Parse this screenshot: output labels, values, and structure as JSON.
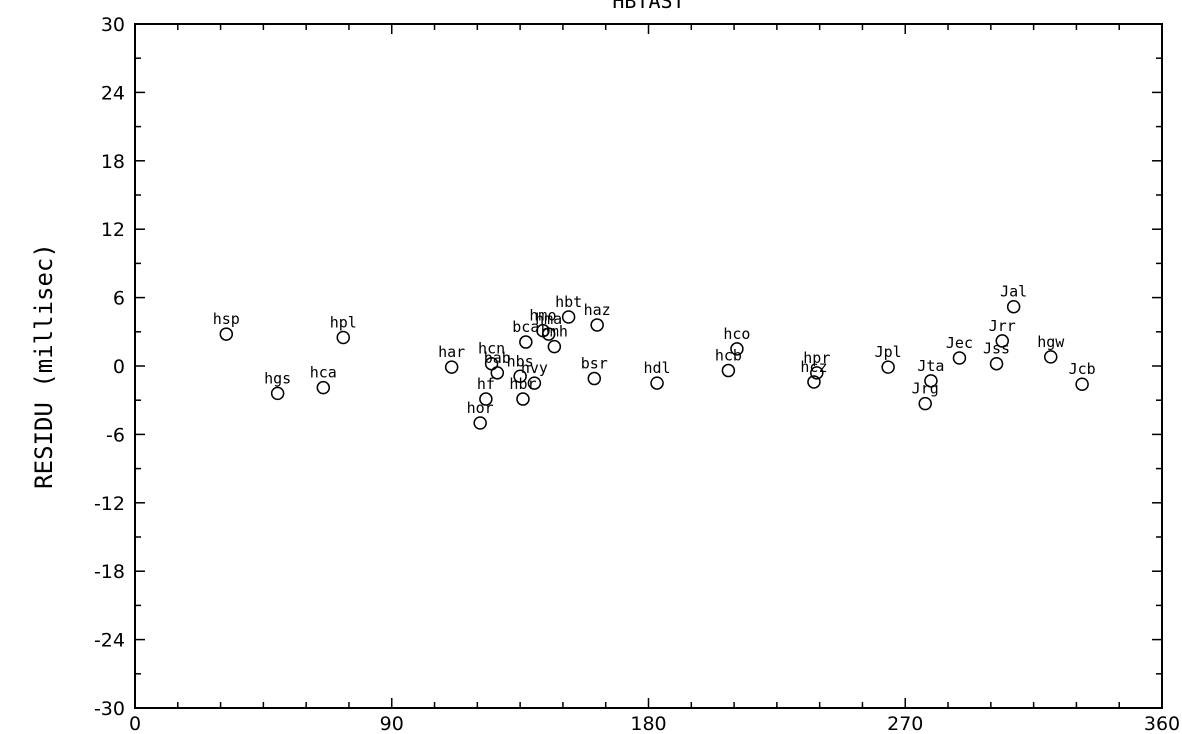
{
  "chart_data": {
    "type": "scatter",
    "title": "HBTAST",
    "xlabel": "",
    "ylabel": "RESIDU (millisec)",
    "xlim": [
      0,
      360
    ],
    "ylim": [
      -30,
      30
    ],
    "xticks": [
      0,
      90,
      180,
      270,
      360
    ],
    "yticks": [
      -30,
      -24,
      -18,
      -12,
      -6,
      0,
      6,
      12,
      18,
      24,
      30
    ],
    "grid": false,
    "marker": "open-circle",
    "points": [
      {
        "label": "hsp",
        "x": 32,
        "y": 2.8
      },
      {
        "label": "hgs",
        "x": 50,
        "y": -2.4
      },
      {
        "label": "hca",
        "x": 66,
        "y": -1.9
      },
      {
        "label": "hpl",
        "x": 73,
        "y": 2.5
      },
      {
        "label": "har",
        "x": 111,
        "y": -0.1
      },
      {
        "label": "hor",
        "x": 121,
        "y": -5.0
      },
      {
        "label": "hf",
        "x": 123,
        "y": -2.9
      },
      {
        "label": "hcn",
        "x": 125,
        "y": 0.2
      },
      {
        "label": "bab",
        "x": 127,
        "y": -0.6
      },
      {
        "label": "hbs",
        "x": 135,
        "y": -0.9
      },
      {
        "label": "hbr",
        "x": 136,
        "y": -2.9
      },
      {
        "label": "bca",
        "x": 137,
        "y": 2.1
      },
      {
        "label": "hvy",
        "x": 140,
        "y": -1.5
      },
      {
        "label": "hmo",
        "x": 143,
        "y": 3.1
      },
      {
        "label": "hma",
        "x": 145,
        "y": 2.8
      },
      {
        "label": "bmh",
        "x": 147,
        "y": 1.7
      },
      {
        "label": "hbt",
        "x": 152,
        "y": 4.3
      },
      {
        "label": "bsr",
        "x": 161,
        "y": -1.1
      },
      {
        "label": "haz",
        "x": 162,
        "y": 3.6
      },
      {
        "label": "hdl",
        "x": 183,
        "y": -1.5
      },
      {
        "label": "hcb",
        "x": 208,
        "y": -0.4
      },
      {
        "label": "hco",
        "x": 211,
        "y": 1.5
      },
      {
        "label": "hcz",
        "x": 238,
        "y": -1.4
      },
      {
        "label": "hpr",
        "x": 239,
        "y": -0.6
      },
      {
        "label": "Jpl",
        "x": 264,
        "y": -0.1
      },
      {
        "label": "Jrg",
        "x": 277,
        "y": -3.3
      },
      {
        "label": "Jta",
        "x": 279,
        "y": -1.3
      },
      {
        "label": "Jec",
        "x": 289,
        "y": 0.7
      },
      {
        "label": "Jss",
        "x": 302,
        "y": 0.2
      },
      {
        "label": "Jrr",
        "x": 304,
        "y": 2.2
      },
      {
        "label": "Jal",
        "x": 308,
        "y": 5.2
      },
      {
        "label": "hgw",
        "x": 321,
        "y": 0.8
      },
      {
        "label": "Jcb",
        "x": 332,
        "y": -1.6
      }
    ]
  }
}
